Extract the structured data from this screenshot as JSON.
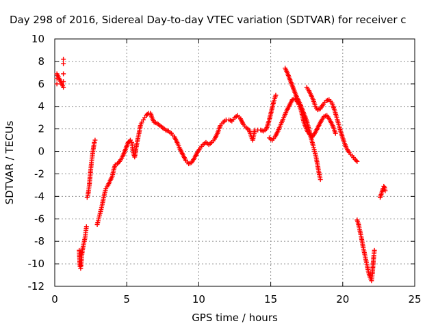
{
  "chart_data": {
    "type": "scatter",
    "title": "Day 298 of 2016, Sidereal Day-to-day VTEC variation (SDTVAR) for receiver c",
    "xlabel": "GPS time / hours",
    "ylabel": "SDTVAR / TECUs",
    "xlim": [
      0,
      25
    ],
    "ylim": [
      -12,
      10
    ],
    "xticks": [
      "0",
      "5",
      "10",
      "15",
      "20",
      "25"
    ],
    "yticks": [
      "10",
      "8",
      "6",
      "4",
      "2",
      "0",
      "-2",
      "-4",
      "-6",
      "-8",
      "-10",
      "-12"
    ],
    "grid": true,
    "legend": "none",
    "marker": "plus",
    "color": "#ff0000",
    "series": [
      {
        "points": [
          [
            0.15,
            6.0
          ],
          [
            0.15,
            6.5
          ],
          [
            0.15,
            6.9
          ],
          [
            0.6,
            5.7
          ],
          [
            0.6,
            6.2
          ],
          [
            0.6,
            6.9
          ],
          [
            0.6,
            7.8
          ],
          [
            0.6,
            8.2
          ],
          [
            1.7,
            -8.8
          ],
          [
            1.75,
            -10.2
          ],
          [
            1.8,
            -10.4
          ],
          [
            1.85,
            -9.6
          ],
          [
            1.9,
            -9.0
          ],
          [
            1.95,
            -8.6
          ],
          [
            2.0,
            -8.3
          ],
          [
            2.05,
            -8.0
          ],
          [
            2.1,
            -7.7
          ],
          [
            2.15,
            -7.2
          ],
          [
            2.2,
            -6.7
          ],
          [
            2.25,
            -4.1
          ],
          [
            2.3,
            -3.9
          ],
          [
            2.35,
            -3.5
          ],
          [
            2.4,
            -3.0
          ],
          [
            2.45,
            -2.3
          ],
          [
            2.5,
            -1.6
          ],
          [
            2.55,
            -1.0
          ],
          [
            2.6,
            -0.5
          ],
          [
            2.65,
            0.0
          ],
          [
            2.7,
            0.4
          ],
          [
            2.75,
            0.8
          ],
          [
            2.8,
            1.0
          ],
          [
            2.95,
            -6.5
          ],
          [
            3.05,
            -6.0
          ],
          [
            3.15,
            -5.5
          ],
          [
            3.25,
            -5.0
          ],
          [
            3.35,
            -4.4
          ],
          [
            3.45,
            -3.8
          ],
          [
            3.55,
            -3.3
          ],
          [
            3.7,
            -3.0
          ],
          [
            3.85,
            -2.6
          ],
          [
            4.0,
            -2.2
          ],
          [
            4.1,
            -1.6
          ],
          [
            4.2,
            -1.2
          ],
          [
            4.35,
            -1.1
          ],
          [
            4.5,
            -0.9
          ],
          [
            4.65,
            -0.6
          ],
          [
            4.8,
            -0.2
          ],
          [
            4.95,
            0.3
          ],
          [
            5.1,
            0.8
          ],
          [
            5.25,
            1.0
          ],
          [
            5.35,
            0.8
          ],
          [
            5.45,
            -0.1
          ],
          [
            5.55,
            -0.5
          ],
          [
            5.65,
            0.3
          ],
          [
            5.75,
            1.0
          ],
          [
            5.85,
            1.6
          ],
          [
            5.95,
            2.3
          ],
          [
            6.05,
            2.6
          ],
          [
            6.15,
            2.8
          ],
          [
            6.25,
            3.0
          ],
          [
            6.35,
            3.2
          ],
          [
            6.5,
            3.4
          ],
          [
            6.65,
            3.4
          ],
          [
            6.75,
            3.0
          ],
          [
            6.9,
            2.6
          ],
          [
            7.1,
            2.5
          ],
          [
            7.3,
            2.3
          ],
          [
            7.5,
            2.1
          ],
          [
            7.7,
            1.9
          ],
          [
            7.9,
            1.8
          ],
          [
            8.1,
            1.6
          ],
          [
            8.3,
            1.3
          ],
          [
            8.5,
            0.8
          ],
          [
            8.7,
            0.2
          ],
          [
            8.9,
            -0.3
          ],
          [
            9.1,
            -0.8
          ],
          [
            9.3,
            -1.1
          ],
          [
            9.5,
            -1.0
          ],
          [
            9.7,
            -0.6
          ],
          [
            9.9,
            -0.1
          ],
          [
            10.1,
            0.3
          ],
          [
            10.3,
            0.6
          ],
          [
            10.5,
            0.8
          ],
          [
            10.7,
            0.6
          ],
          [
            10.9,
            0.8
          ],
          [
            11.1,
            1.1
          ],
          [
            11.3,
            1.6
          ],
          [
            11.5,
            2.3
          ],
          [
            11.7,
            2.6
          ],
          [
            11.9,
            2.8
          ],
          [
            12.1,
            2.8
          ],
          [
            12.3,
            2.7
          ],
          [
            12.5,
            3.0
          ],
          [
            12.7,
            3.2
          ],
          [
            12.9,
            2.9
          ],
          [
            13.1,
            2.4
          ],
          [
            13.3,
            2.1
          ],
          [
            13.5,
            1.9
          ],
          [
            13.65,
            1.3
          ],
          [
            13.75,
            1.0
          ],
          [
            13.9,
            1.9
          ],
          [
            14.1,
            1.9
          ],
          [
            14.3,
            1.9
          ],
          [
            14.5,
            1.8
          ],
          [
            14.7,
            2.0
          ],
          [
            14.9,
            2.8
          ],
          [
            15.05,
            3.6
          ],
          [
            15.2,
            4.4
          ],
          [
            15.35,
            5.0
          ],
          [
            14.9,
            1.2
          ],
          [
            15.1,
            1.0
          ],
          [
            15.3,
            1.3
          ],
          [
            15.5,
            1.8
          ],
          [
            15.7,
            2.4
          ],
          [
            15.9,
            3.0
          ],
          [
            16.1,
            3.6
          ],
          [
            16.3,
            4.1
          ],
          [
            16.5,
            4.6
          ],
          [
            16.7,
            4.7
          ],
          [
            16.9,
            4.3
          ],
          [
            17.1,
            3.7
          ],
          [
            17.3,
            2.6
          ],
          [
            17.5,
            1.9
          ],
          [
            17.7,
            1.5
          ],
          [
            17.9,
            1.3
          ],
          [
            18.1,
            1.7
          ],
          [
            18.3,
            2.2
          ],
          [
            18.5,
            2.7
          ],
          [
            18.7,
            3.1
          ],
          [
            18.9,
            3.2
          ],
          [
            19.1,
            2.8
          ],
          [
            19.3,
            2.3
          ],
          [
            19.5,
            1.6
          ],
          [
            16.0,
            7.4
          ],
          [
            16.15,
            7.0
          ],
          [
            16.3,
            6.5
          ],
          [
            16.45,
            6.0
          ],
          [
            16.6,
            5.5
          ],
          [
            16.75,
            5.0
          ],
          [
            16.9,
            4.6
          ],
          [
            17.05,
            4.2
          ],
          [
            17.2,
            3.7
          ],
          [
            17.35,
            3.2
          ],
          [
            17.5,
            2.7
          ],
          [
            17.65,
            2.0
          ],
          [
            17.8,
            1.2
          ],
          [
            17.95,
            0.5
          ],
          [
            18.05,
            0.0
          ],
          [
            18.15,
            -0.5
          ],
          [
            18.25,
            -1.2
          ],
          [
            18.35,
            -1.9
          ],
          [
            18.45,
            -2.5
          ],
          [
            17.5,
            5.7
          ],
          [
            17.65,
            5.4
          ],
          [
            17.8,
            5.0
          ],
          [
            17.95,
            4.6
          ],
          [
            18.1,
            4.0
          ],
          [
            18.25,
            3.7
          ],
          [
            18.45,
            3.8
          ],
          [
            18.65,
            4.2
          ],
          [
            18.85,
            4.5
          ],
          [
            19.05,
            4.6
          ],
          [
            19.25,
            4.3
          ],
          [
            19.45,
            3.6
          ],
          [
            19.65,
            2.7
          ],
          [
            19.85,
            1.8
          ],
          [
            20.05,
            1.0
          ],
          [
            20.25,
            0.3
          ],
          [
            20.45,
            -0.1
          ],
          [
            20.65,
            -0.4
          ],
          [
            20.85,
            -0.7
          ],
          [
            21.0,
            -0.9
          ],
          [
            21.0,
            -6.1
          ],
          [
            21.1,
            -6.5
          ],
          [
            21.2,
            -7.1
          ],
          [
            21.3,
            -7.7
          ],
          [
            21.4,
            -8.4
          ],
          [
            21.5,
            -9.0
          ],
          [
            21.6,
            -9.6
          ],
          [
            21.7,
            -10.2
          ],
          [
            21.8,
            -10.8
          ],
          [
            21.9,
            -11.2
          ],
          [
            22.0,
            -11.5
          ],
          [
            22.05,
            -11.0
          ],
          [
            22.1,
            -10.2
          ],
          [
            22.15,
            -9.4
          ],
          [
            22.2,
            -8.8
          ],
          [
            22.6,
            -4.1
          ],
          [
            22.7,
            -3.7
          ],
          [
            22.8,
            -3.3
          ],
          [
            22.85,
            -3.1
          ],
          [
            22.9,
            -3.2
          ],
          [
            22.95,
            -3.5
          ]
        ]
      }
    ]
  }
}
